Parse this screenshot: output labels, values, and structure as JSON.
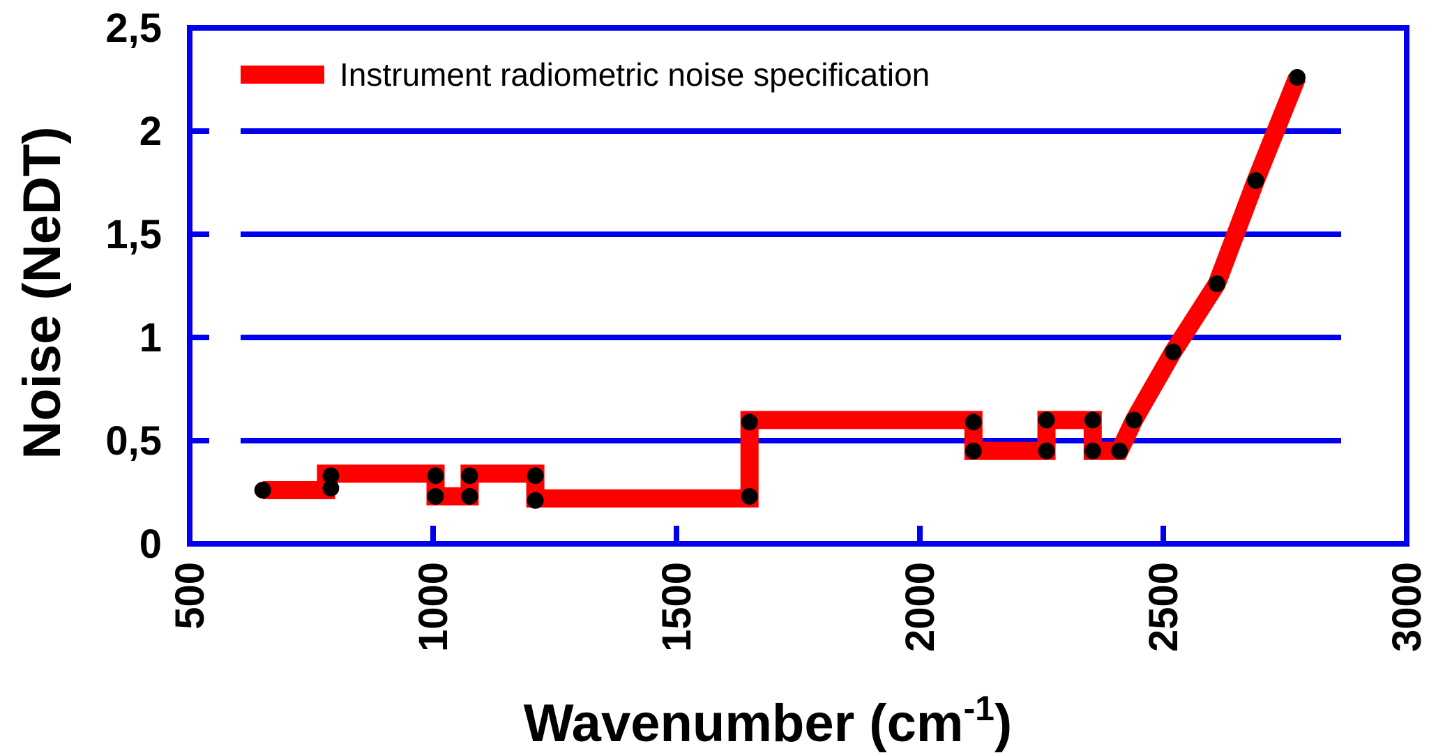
{
  "chart_data": {
    "type": "line",
    "xlabel": "Wavenumber (cm",
    "xlabel_superscript": "-1",
    "xlabel_suffix": ")",
    "ylabel": "Noise (NeDT)",
    "xlim": [
      500,
      3000
    ],
    "ylim": [
      0,
      2.5
    ],
    "x_ticks": [
      500,
      1000,
      1500,
      2000,
      2500,
      3000
    ],
    "x_tick_labels": [
      "500",
      "1000",
      "1500",
      "2000",
      "2500",
      "3000"
    ],
    "y_ticks": [
      0,
      0.5,
      1,
      1.5,
      2,
      2.5
    ],
    "y_tick_labels": [
      "0",
      "0,5",
      "1",
      "1,5",
      "2",
      "2,5"
    ],
    "grid": "horizontal",
    "legend_position": "top-left",
    "series": [
      {
        "name": "Instrument radiometric noise specification",
        "color": "#ff0000",
        "marker_color": "#000000",
        "step_line": [
          [
            650,
            0.26
          ],
          [
            780,
            0.26
          ],
          [
            780,
            0.34
          ],
          [
            1005,
            0.34
          ],
          [
            1005,
            0.23
          ],
          [
            1075,
            0.23
          ],
          [
            1075,
            0.34
          ],
          [
            1210,
            0.34
          ],
          [
            1210,
            0.22
          ],
          [
            1650,
            0.22
          ],
          [
            1650,
            0.6
          ],
          [
            2110,
            0.6
          ],
          [
            2110,
            0.45
          ],
          [
            2260,
            0.45
          ],
          [
            2260,
            0.6
          ],
          [
            2355,
            0.6
          ],
          [
            2355,
            0.45
          ],
          [
            2410,
            0.45
          ],
          [
            2440,
            0.6
          ],
          [
            2520,
            0.93
          ],
          [
            2610,
            1.26
          ],
          [
            2690,
            1.76
          ],
          [
            2775,
            2.26
          ]
        ],
        "points": [
          [
            650,
            0.26
          ],
          [
            790,
            0.27
          ],
          [
            790,
            0.33
          ],
          [
            1005,
            0.33
          ],
          [
            1005,
            0.23
          ],
          [
            1075,
            0.33
          ],
          [
            1075,
            0.23
          ],
          [
            1210,
            0.33
          ],
          [
            1210,
            0.21
          ],
          [
            1650,
            0.23
          ],
          [
            1650,
            0.59
          ],
          [
            2110,
            0.59
          ],
          [
            2110,
            0.45
          ],
          [
            2260,
            0.6
          ],
          [
            2260,
            0.45
          ],
          [
            2355,
            0.6
          ],
          [
            2355,
            0.45
          ],
          [
            2410,
            0.45
          ],
          [
            2440,
            0.6
          ],
          [
            2520,
            0.93
          ],
          [
            2610,
            1.26
          ],
          [
            2690,
            1.76
          ],
          [
            2775,
            2.26
          ]
        ]
      }
    ]
  },
  "colors": {
    "frame": "#0000ee",
    "gridline": "#0000ee",
    "line": "#ff0000",
    "marker": "#000000"
  }
}
